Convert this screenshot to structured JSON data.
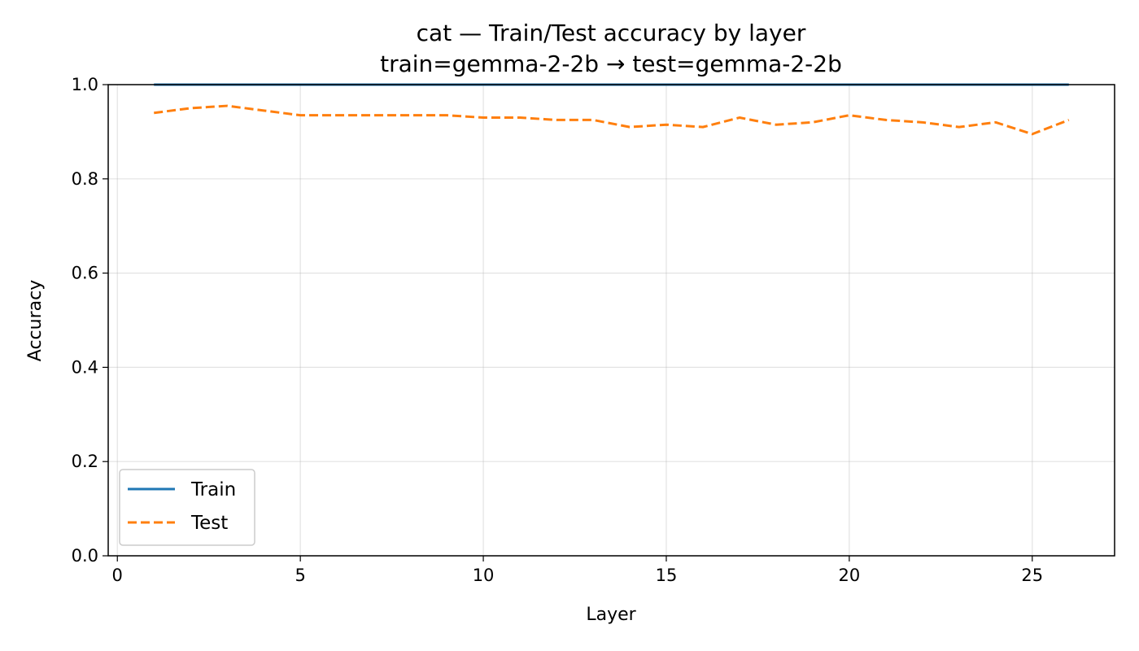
{
  "chart_data": {
    "type": "line",
    "title": "cat — Train/Test accuracy by layer",
    "subtitle": "train=gemma-2-2b → test=gemma-2-2b",
    "xlabel": "Layer",
    "ylabel": "Accuracy",
    "xlim": [
      -0.25,
      27.25
    ],
    "ylim": [
      0.0,
      1.0
    ],
    "xticks": [
      0,
      5,
      10,
      15,
      20,
      25
    ],
    "xtick_labels": [
      "0",
      "5",
      "10",
      "15",
      "20",
      "25"
    ],
    "yticks": [
      0.0,
      0.2,
      0.4,
      0.6,
      0.8,
      1.0
    ],
    "ytick_labels": [
      "0.0",
      "0.2",
      "0.4",
      "0.6",
      "0.8",
      "1.0"
    ],
    "grid": true,
    "legend_position": "lower-left",
    "x": [
      1,
      2,
      3,
      4,
      5,
      6,
      7,
      8,
      9,
      10,
      11,
      12,
      13,
      14,
      15,
      16,
      17,
      18,
      19,
      20,
      21,
      22,
      23,
      24,
      25,
      26
    ],
    "series": [
      {
        "name": "Train",
        "color": "#1f77b4",
        "style": "solid",
        "values": [
          1.0,
          1.0,
          1.0,
          1.0,
          1.0,
          1.0,
          1.0,
          1.0,
          1.0,
          1.0,
          1.0,
          1.0,
          1.0,
          1.0,
          1.0,
          1.0,
          1.0,
          1.0,
          1.0,
          1.0,
          1.0,
          1.0,
          1.0,
          1.0,
          1.0,
          1.0
        ]
      },
      {
        "name": "Test",
        "color": "#ff7f0e",
        "style": "dashed",
        "values": [
          0.94,
          0.95,
          0.955,
          0.945,
          0.935,
          0.935,
          0.935,
          0.935,
          0.935,
          0.93,
          0.93,
          0.925,
          0.925,
          0.91,
          0.915,
          0.91,
          0.93,
          0.915,
          0.92,
          0.935,
          0.925,
          0.92,
          0.91,
          0.92,
          0.895,
          0.925
        ]
      }
    ]
  }
}
